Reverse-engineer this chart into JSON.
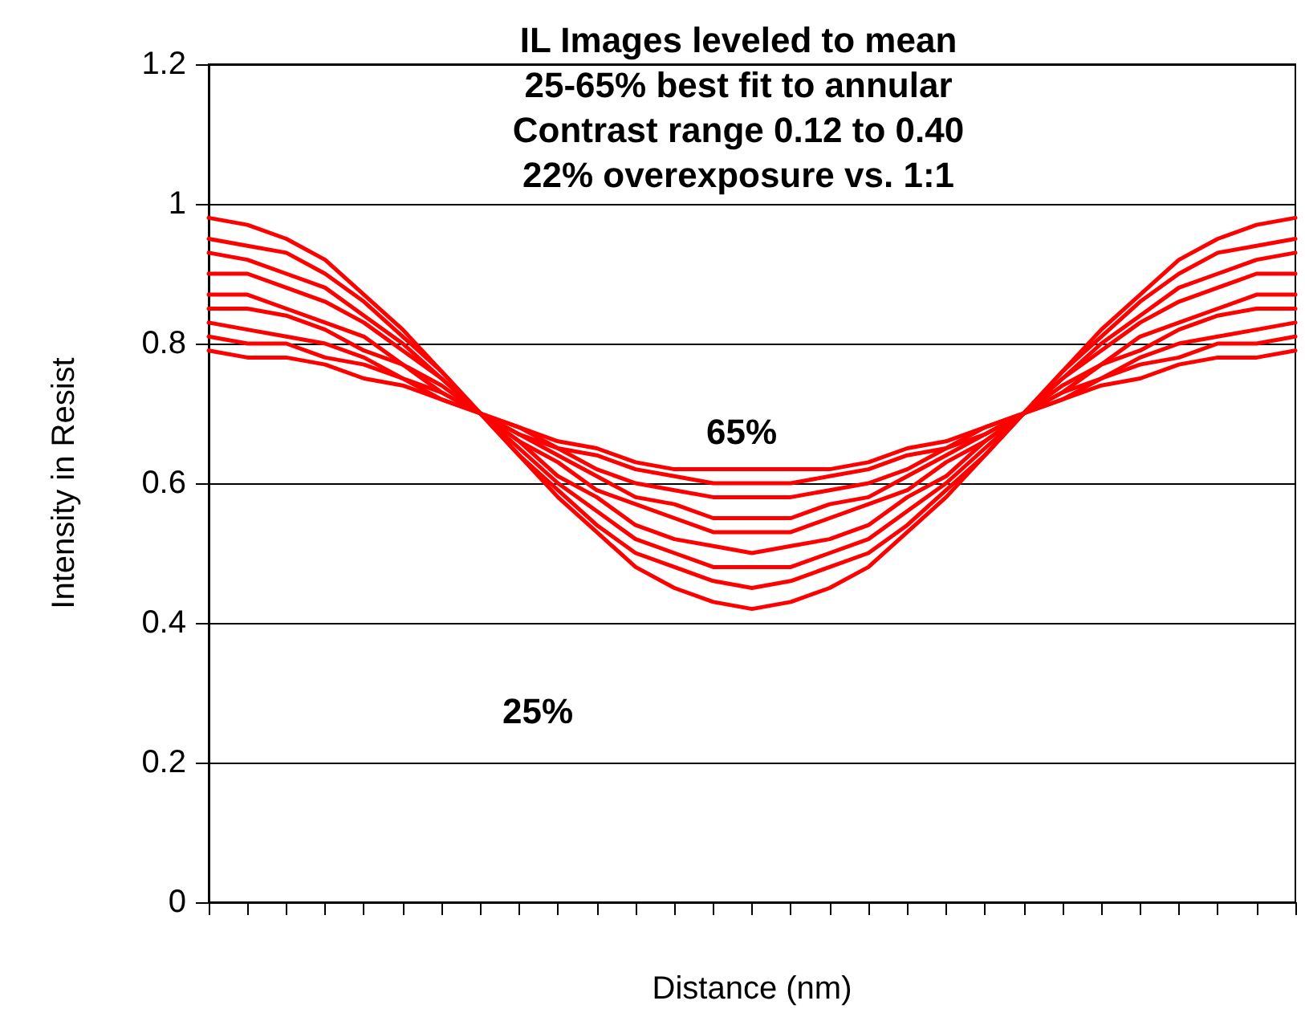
{
  "chart_data": {
    "type": "line",
    "title": "IL Images leveled to mean\n25-65% best fit to annular\nContrast range 0.12 to 0.40\n22% overexposure vs. 1:1",
    "xlabel": "Distance (nm)",
    "ylabel": "Intensity in Resist",
    "annotations": [
      "65%",
      "25%"
    ],
    "categories": [
      null,
      null,
      null,
      null,
      null,
      null,
      null,
      null,
      null,
      null,
      null,
      null,
      null,
      null,
      null,
      null,
      null,
      null,
      null,
      null,
      null,
      null,
      null,
      null,
      null,
      null,
      null,
      null,
      null
    ],
    "series": [
      {
        "color": "#ff0000",
        "values": [
          0.98,
          0.97,
          0.95,
          0.92,
          0.87,
          0.82,
          0.76,
          0.7,
          0.64,
          0.58,
          0.53,
          0.48,
          0.45,
          0.43,
          0.42,
          0.43,
          0.45,
          0.48,
          0.53,
          0.58,
          0.64,
          0.7,
          0.76,
          0.82,
          0.87,
          0.92,
          0.95,
          0.97,
          0.98
        ]
      },
      {
        "color": "#ff0000",
        "values": [
          0.95,
          0.94,
          0.93,
          0.9,
          0.86,
          0.81,
          0.76,
          0.7,
          0.64,
          0.59,
          0.54,
          0.5,
          0.48,
          0.46,
          0.45,
          0.46,
          0.48,
          0.5,
          0.54,
          0.59,
          0.64,
          0.7,
          0.76,
          0.81,
          0.86,
          0.9,
          0.93,
          0.94,
          0.95
        ]
      },
      {
        "color": "#ff0000",
        "values": [
          0.93,
          0.92,
          0.9,
          0.88,
          0.84,
          0.8,
          0.75,
          0.7,
          0.65,
          0.6,
          0.56,
          0.52,
          0.5,
          0.48,
          0.48,
          0.48,
          0.5,
          0.52,
          0.56,
          0.6,
          0.65,
          0.7,
          0.75,
          0.8,
          0.84,
          0.88,
          0.9,
          0.92,
          0.93
        ]
      },
      {
        "color": "#ff0000",
        "values": [
          0.9,
          0.9,
          0.88,
          0.86,
          0.83,
          0.79,
          0.75,
          0.7,
          0.66,
          0.61,
          0.58,
          0.54,
          0.52,
          0.51,
          0.5,
          0.51,
          0.52,
          0.54,
          0.58,
          0.61,
          0.66,
          0.7,
          0.75,
          0.79,
          0.83,
          0.86,
          0.88,
          0.9,
          0.9
        ]
      },
      {
        "color": "#ff0000",
        "values": [
          0.87,
          0.87,
          0.85,
          0.83,
          0.81,
          0.77,
          0.74,
          0.7,
          0.66,
          0.63,
          0.59,
          0.57,
          0.55,
          0.53,
          0.53,
          0.53,
          0.55,
          0.57,
          0.59,
          0.63,
          0.66,
          0.7,
          0.74,
          0.77,
          0.81,
          0.83,
          0.85,
          0.87,
          0.87
        ]
      },
      {
        "color": "#ff0000",
        "values": [
          0.85,
          0.85,
          0.84,
          0.82,
          0.79,
          0.77,
          0.73,
          0.7,
          0.67,
          0.64,
          0.61,
          0.58,
          0.57,
          0.55,
          0.55,
          0.55,
          0.57,
          0.58,
          0.61,
          0.64,
          0.67,
          0.7,
          0.73,
          0.77,
          0.79,
          0.82,
          0.84,
          0.85,
          0.85
        ]
      },
      {
        "color": "#ff0000",
        "values": [
          0.83,
          0.82,
          0.81,
          0.8,
          0.78,
          0.75,
          0.73,
          0.7,
          0.67,
          0.65,
          0.62,
          0.6,
          0.59,
          0.58,
          0.58,
          0.58,
          0.59,
          0.6,
          0.62,
          0.65,
          0.67,
          0.7,
          0.73,
          0.75,
          0.78,
          0.8,
          0.81,
          0.82,
          0.83
        ]
      },
      {
        "color": "#ff0000",
        "values": [
          0.81,
          0.8,
          0.8,
          0.78,
          0.77,
          0.75,
          0.72,
          0.7,
          0.68,
          0.65,
          0.64,
          0.62,
          0.61,
          0.6,
          0.6,
          0.6,
          0.61,
          0.62,
          0.64,
          0.65,
          0.68,
          0.7,
          0.72,
          0.75,
          0.77,
          0.78,
          0.8,
          0.8,
          0.81
        ]
      },
      {
        "color": "#ff0000",
        "values": [
          0.79,
          0.78,
          0.78,
          0.77,
          0.75,
          0.74,
          0.72,
          0.7,
          0.68,
          0.66,
          0.65,
          0.63,
          0.62,
          0.62,
          0.62,
          0.62,
          0.62,
          0.63,
          0.65,
          0.66,
          0.68,
          0.7,
          0.72,
          0.74,
          0.75,
          0.77,
          0.78,
          0.78,
          0.79
        ]
      }
    ],
    "ylim": [
      0,
      1.2
    ],
    "yticks": [
      0,
      0.2,
      0.4,
      0.6,
      0.8,
      1,
      1.2
    ],
    "grid": "y",
    "marker": "none",
    "line_style": "solid",
    "tick_labels": "y"
  }
}
